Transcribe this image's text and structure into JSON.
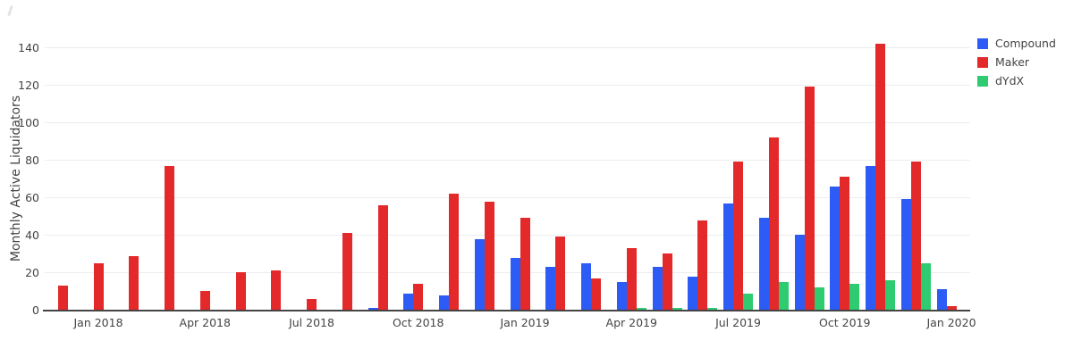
{
  "page": {
    "background": "#ffffff"
  },
  "legend": {
    "items": [
      {
        "label": "Compound",
        "color": "#2d5bf5"
      },
      {
        "label": "Maker",
        "color": "#e4292b"
      },
      {
        "label": "dYdX",
        "color": "#2fcb70"
      }
    ]
  },
  "chart_data": {
    "type": "bar",
    "title": "",
    "xlabel": "",
    "ylabel": "Monthly Active Liquidators",
    "ylim": [
      0,
      145
    ],
    "grid": true,
    "legend_position": "top-right",
    "categories": [
      "Dec 2017",
      "Jan 2018",
      "Feb 2018",
      "Mar 2018",
      "Apr 2018",
      "May 2018",
      "Jun 2018",
      "Jul 2018",
      "Aug 2018",
      "Sep 2018",
      "Oct 2018",
      "Nov 2018",
      "Dec 2018",
      "Jan 2019",
      "Feb 2019",
      "Mar 2019",
      "Apr 2019",
      "May 2019",
      "Jun 2019",
      "Jul 2019",
      "Aug 2019",
      "Sep 2019",
      "Oct 2019",
      "Nov 2019",
      "Dec 2019",
      "Jan 2020"
    ],
    "series": [
      {
        "name": "Compound",
        "color": "#2d5bf5",
        "values": [
          0,
          0,
          0,
          0,
          0,
          0,
          0,
          0,
          0,
          1,
          9,
          8,
          38,
          28,
          23,
          25,
          15,
          23,
          18,
          57,
          49,
          40,
          66,
          77,
          59,
          11
        ]
      },
      {
        "name": "Maker",
        "color": "#e4292b",
        "values": [
          13,
          25,
          29,
          77,
          10,
          20,
          21,
          6,
          41,
          56,
          14,
          62,
          58,
          49,
          39,
          17,
          33,
          30,
          48,
          79,
          92,
          119,
          71,
          142,
          79,
          2
        ]
      },
      {
        "name": "dYdX",
        "color": "#2fcb70",
        "values": [
          0,
          0,
          0,
          0,
          0,
          0,
          0,
          0,
          0,
          0,
          0,
          0,
          0,
          0,
          0,
          0,
          1,
          1,
          1,
          9,
          15,
          12,
          14,
          16,
          25,
          0
        ]
      }
    ],
    "yticks": [
      0,
      20,
      40,
      60,
      80,
      100,
      120,
      140
    ],
    "xtick_labels": [
      "Jan 2018",
      "Apr 2018",
      "Jul 2018",
      "Oct 2018",
      "Jan 2019",
      "Apr 2019",
      "Jul 2019",
      "Oct 2019",
      "Jan 2020"
    ],
    "xtick_indices": [
      1,
      4,
      7,
      10,
      13,
      16,
      19,
      22,
      25
    ]
  }
}
